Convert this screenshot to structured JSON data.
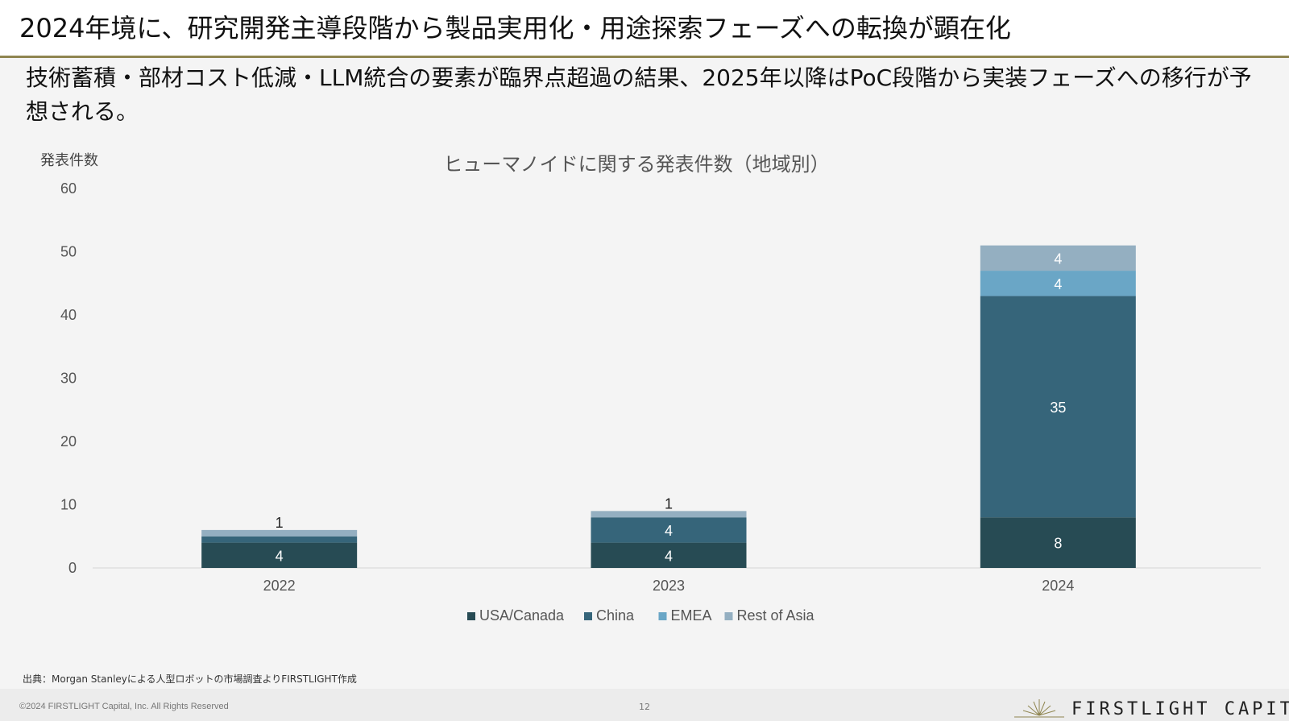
{
  "slide": {
    "title": "2024年境に、研究開発主導段階から製品実用化・用途探索フェーズへの転換が顕在化",
    "lead": "技術蓄積・部材コスト低減・LLM統合の要素が臨界点超過の結果、2025年以降はPoC段階から実装フェーズへの移行が予想される。"
  },
  "chart_data": {
    "type": "bar",
    "stacked": true,
    "title": "ヒューマノイドに関する発表件数（地域別）",
    "ylabel": "発表件数",
    "xlabel": "",
    "ylim": [
      0,
      60
    ],
    "yticks": [
      0,
      10,
      20,
      30,
      40,
      50,
      60
    ],
    "grid": false,
    "legend_position": "bottom-center",
    "categories": [
      "2022",
      "2023",
      "2024"
    ],
    "series": [
      {
        "name": "USA/Canada",
        "color": "#274b54",
        "values": [
          4,
          4,
          8
        ],
        "labels": [
          "4",
          "4",
          "8"
        ]
      },
      {
        "name": "China",
        "color": "#36657a",
        "values": [
          1,
          4,
          35
        ],
        "labels": [
          "1",
          "4",
          "35"
        ]
      },
      {
        "name": "EMEA",
        "color": "#6aa6c6",
        "values": [
          0,
          0,
          4
        ],
        "labels": [
          "",
          "",
          "4"
        ]
      },
      {
        "name": "Rest of Asia",
        "color": "#94afc1",
        "values": [
          1,
          1,
          4
        ],
        "labels": [
          "1",
          "1",
          "4"
        ]
      }
    ]
  },
  "footer": {
    "source": "出典：Morgan Stanleyによる人型ロボットの市場調査よりFIRSTLIGHT作成",
    "copyright": "©2024 FIRSTLIGHT Capital, Inc. All Rights Reserved",
    "page_number": "12",
    "logo_text": "FIRSTLIGHT CAPITAL",
    "accent_color": "#8f8550"
  }
}
